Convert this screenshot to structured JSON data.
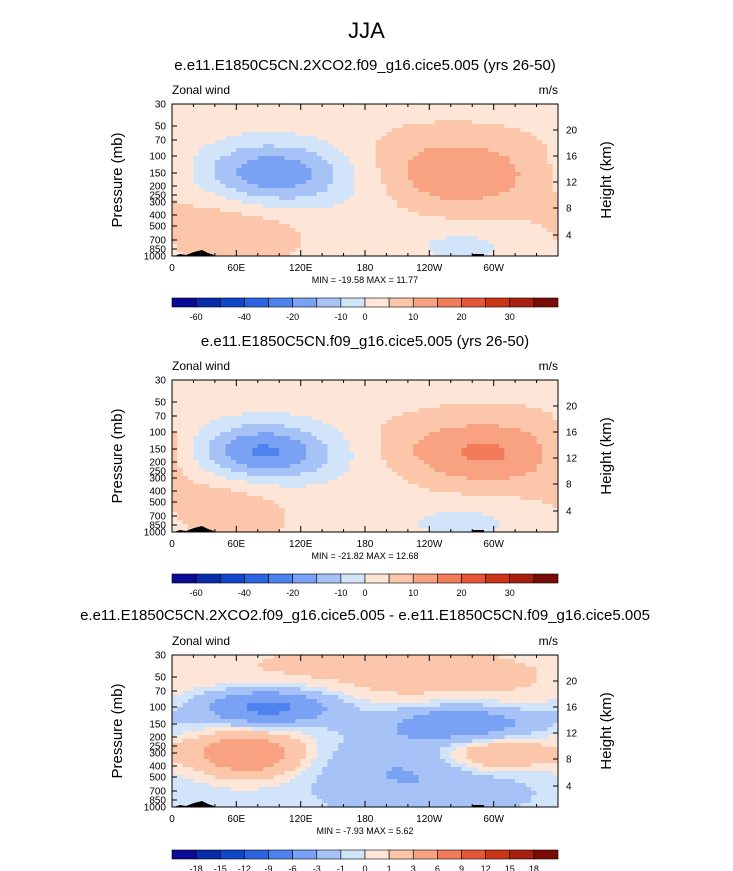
{
  "figure": {
    "title": "JJA"
  },
  "colors": {
    "scale": [
      "#0a0a96",
      "#0a2ca8",
      "#1046c8",
      "#2a64e0",
      "#4e82ee",
      "#7aa2f4",
      "#a6c2f6",
      "#d2e4fa",
      "#fde6d8",
      "#fbc6aa",
      "#f8a282",
      "#f27c5a",
      "#e65636",
      "#cc3418",
      "#a81e0e",
      "#7a0c06"
    ],
    "terrain": "#000000"
  },
  "chart_data": [
    {
      "type": "contour",
      "title": "e.e11.E1850C5CN.2XCO2.f09_g16.cice5.005 (yrs 26-50)",
      "left_label": "Zonal wind",
      "right_label": "m/s",
      "ylabel": "Pressure (mb)",
      "y2label": "Height (km)",
      "x_ticks": [
        "0",
        "60E",
        "120E",
        "180",
        "120W",
        "60W"
      ],
      "y_ticks": [
        "30",
        "50",
        "70",
        "100",
        "150",
        "200",
        "250",
        "300",
        "400",
        "500",
        "700",
        "850",
        "1000"
      ],
      "y2_ticks": [
        "20",
        "16",
        "12",
        "8",
        "4"
      ],
      "stats": "MIN = -19.58   MAX =  11.77",
      "colorbar_labels": [
        "-60",
        "-40",
        "-20",
        "-10",
        "0",
        "10",
        "20",
        "30"
      ],
      "fields": [
        {
          "lon": 95,
          "p": 155,
          "wx": 55,
          "wy": 0.55,
          "amp": -19.6
        },
        {
          "lon": 255,
          "p": 150,
          "wx": 70,
          "wy": 0.6,
          "amp": 11.8
        },
        {
          "lon": 60,
          "p": 420,
          "wx": 45,
          "wy": 0.7,
          "amp": 6
        },
        {
          "lon": 270,
          "p": 800,
          "wx": 40,
          "wy": 0.35,
          "amp": -5
        },
        {
          "lon": 200,
          "p": 200,
          "wx": 35,
          "wy": 0.6,
          "amp": -3
        }
      ]
    },
    {
      "type": "contour",
      "title": "e.e11.E1850C5CN.f09_g16.cice5.005 (yrs 26-50)",
      "left_label": "Zonal wind",
      "right_label": "m/s",
      "ylabel": "Pressure (mb)",
      "y2label": "Height (km)",
      "x_ticks": [
        "0",
        "60E",
        "120E",
        "180",
        "120W",
        "60W"
      ],
      "y_ticks": [
        "30",
        "50",
        "70",
        "100",
        "150",
        "200",
        "250",
        "300",
        "400",
        "500",
        "700",
        "850",
        "1000"
      ],
      "y2_ticks": [
        "20",
        "16",
        "12",
        "8",
        "4"
      ],
      "stats": "MIN = -21.82   MAX =  12.68",
      "colorbar_labels": [
        "-60",
        "-40",
        "-20",
        "-10",
        "0",
        "10",
        "20",
        "30"
      ],
      "fields": [
        {
          "lon": 80,
          "p": 160,
          "wx": 50,
          "wy": 0.5,
          "amp": -21.8
        },
        {
          "lon": 295,
          "p": 160,
          "wx": 70,
          "wy": 0.55,
          "amp": 12.7
        },
        {
          "lon": 55,
          "p": 450,
          "wx": 40,
          "wy": 0.7,
          "amp": 5
        },
        {
          "lon": 270,
          "p": 800,
          "wx": 45,
          "wy": 0.35,
          "amp": -5
        },
        {
          "lon": 195,
          "p": 250,
          "wx": 40,
          "wy": 0.6,
          "amp": -2
        }
      ]
    },
    {
      "type": "contour",
      "title": "e.e11.E1850C5CN.2XCO2.f09_g16.cice5.005 - e.e11.E1850C5CN.f09_g16.cice5.005",
      "left_label": "Zonal wind",
      "right_label": "m/s",
      "ylabel": "Pressure (mb)",
      "y2label": "Height (km)",
      "x_ticks": [
        "0",
        "60E",
        "120E",
        "180",
        "120W",
        "60W"
      ],
      "y_ticks": [
        "30",
        "50",
        "70",
        "100",
        "150",
        "200",
        "250",
        "300",
        "400",
        "500",
        "700",
        "850",
        "1000"
      ],
      "y2_ticks": [
        "20",
        "16",
        "12",
        "8",
        "4"
      ],
      "stats": "MIN = -7.93   MAX =   5.62",
      "colorbar_labels": [
        "-18",
        "-15",
        "-12",
        "-9",
        "-6",
        "-3",
        "-1",
        "0",
        "1",
        "3",
        "6",
        "9",
        "12",
        "15",
        "18"
      ],
      "fields": [
        {
          "lon": 200,
          "p": 60,
          "wx": 200,
          "wy": 1.2,
          "amp": 2
        },
        {
          "lon": 90,
          "p": 100,
          "wx": 45,
          "wy": 0.3,
          "amp": -7.9
        },
        {
          "lon": 270,
          "p": 145,
          "wx": 50,
          "wy": 0.3,
          "amp": -6
        },
        {
          "lon": 70,
          "p": 300,
          "wx": 35,
          "wy": 0.35,
          "amp": 5.6
        },
        {
          "lon": 300,
          "p": 300,
          "wx": 35,
          "wy": 0.3,
          "amp": 4
        },
        {
          "lon": 190,
          "p": 350,
          "wx": 50,
          "wy": 0.7,
          "amp": -2
        },
        {
          "lon": 260,
          "p": 500,
          "wx": 60,
          "wy": 0.6,
          "amp": -2
        }
      ]
    }
  ]
}
